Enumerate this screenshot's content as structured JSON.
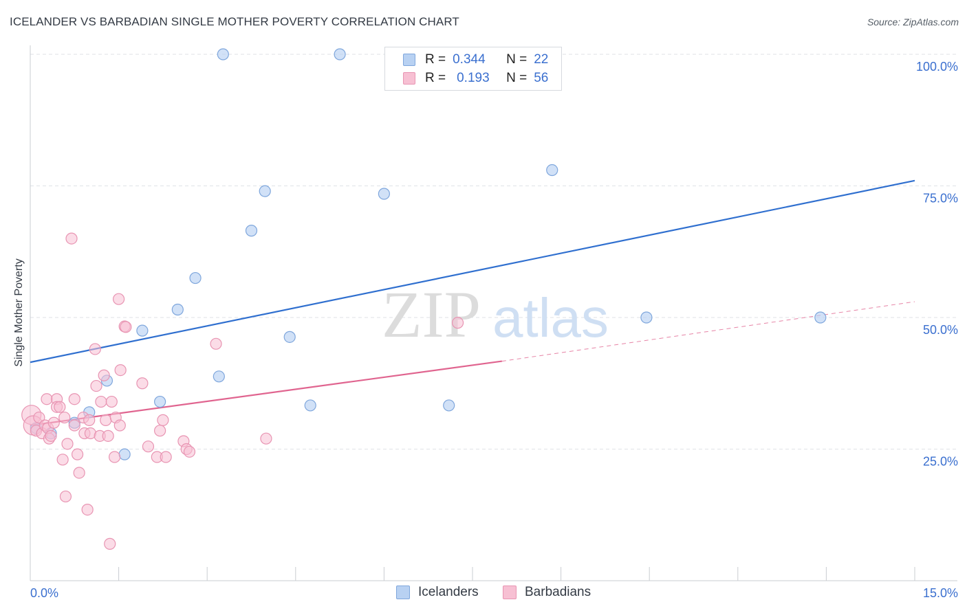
{
  "header": {
    "title": "ICELANDER VS BARBADIAN SINGLE MOTHER POVERTY CORRELATION CHART",
    "source": "Source: ZipAtlas.com"
  },
  "watermark": {
    "zip": "ZIP",
    "atlas": "atlas"
  },
  "legend": {
    "rows": [
      {
        "r_label": "R =",
        "r_value": "0.344",
        "n_label": "N =",
        "n_value": "22"
      },
      {
        "r_label": "R =",
        "r_value": "0.193",
        "n_label": "N =",
        "n_value": "56"
      }
    ]
  },
  "bottom_legend": {
    "items": [
      "Icelanders",
      "Barbadians"
    ]
  },
  "colors": {
    "blue_fill": "#b8d1f2",
    "blue_stroke": "#7ea6dc",
    "blue_line": "#2f6fcf",
    "pink_fill": "#f7c0d3",
    "pink_stroke": "#e894b2",
    "pink_line": "#e0648f",
    "tick_text": "#3a6fcf",
    "grid": "#dfe2e6"
  },
  "chart_data": {
    "type": "scatter",
    "title": "ICELANDER VS BARBADIAN SINGLE MOTHER POVERTY CORRELATION CHART",
    "xlabel": "",
    "ylabel": "Single Mother Poverty",
    "xlim": [
      0,
      15
    ],
    "ylim": [
      0,
      100
    ],
    "x_tick_labels": [
      "0.0%",
      "15.0%"
    ],
    "y_tick_labels": [
      "25.0%",
      "50.0%",
      "75.0%",
      "100.0%"
    ],
    "y_ticks": [
      25,
      50,
      75,
      100
    ],
    "grid": true,
    "legend_position": "top-center",
    "series": [
      {
        "name": "Icelanders",
        "color": "#7ea6dc",
        "points": [
          [
            0.1,
            29
          ],
          [
            0.35,
            28
          ],
          [
            0.75,
            30
          ],
          [
            1.0,
            32
          ],
          [
            1.3,
            38
          ],
          [
            1.6,
            24
          ],
          [
            1.9,
            47.5
          ],
          [
            2.2,
            34
          ],
          [
            2.5,
            51.5
          ],
          [
            2.8,
            57.5
          ],
          [
            3.2,
            38.8
          ],
          [
            3.27,
            100
          ],
          [
            3.75,
            66.5
          ],
          [
            3.98,
            74
          ],
          [
            4.4,
            46.3
          ],
          [
            4.75,
            33.3
          ],
          [
            5.25,
            100
          ],
          [
            6.0,
            73.5
          ],
          [
            7.1,
            33.3
          ],
          [
            8.85,
            78
          ],
          [
            10.45,
            50
          ],
          [
            13.4,
            50
          ]
        ],
        "trend": {
          "x": [
            0,
            15
          ],
          "y": [
            41.5,
            76
          ]
        }
      },
      {
        "name": "Barbadians",
        "color": "#e894b2",
        "points": [
          [
            0.02,
            31.5
          ],
          [
            0.05,
            29.5
          ],
          [
            0.1,
            28.5
          ],
          [
            0.15,
            31
          ],
          [
            0.2,
            28
          ],
          [
            0.25,
            29.5
          ],
          [
            0.28,
            34.5
          ],
          [
            0.3,
            29
          ],
          [
            0.32,
            27
          ],
          [
            0.35,
            27.5
          ],
          [
            0.4,
            30
          ],
          [
            0.45,
            34.5
          ],
          [
            0.45,
            33
          ],
          [
            0.5,
            33
          ],
          [
            0.55,
            23
          ],
          [
            0.58,
            31
          ],
          [
            0.6,
            16
          ],
          [
            0.63,
            26
          ],
          [
            0.7,
            65
          ],
          [
            0.75,
            29.5
          ],
          [
            0.75,
            34.5
          ],
          [
            0.8,
            24
          ],
          [
            0.83,
            20.5
          ],
          [
            0.9,
            31
          ],
          [
            0.92,
            28
          ],
          [
            0.97,
            13.5
          ],
          [
            1.0,
            30.5
          ],
          [
            1.02,
            28
          ],
          [
            1.1,
            44
          ],
          [
            1.12,
            37
          ],
          [
            1.18,
            27.5
          ],
          [
            1.2,
            34
          ],
          [
            1.25,
            39
          ],
          [
            1.28,
            30.5
          ],
          [
            1.32,
            27.5
          ],
          [
            1.35,
            7
          ],
          [
            1.38,
            34
          ],
          [
            1.43,
            23.5
          ],
          [
            1.45,
            31
          ],
          [
            1.5,
            53.5
          ],
          [
            1.52,
            29.5
          ],
          [
            1.53,
            40
          ],
          [
            1.6,
            48.3
          ],
          [
            1.62,
            48.2
          ],
          [
            1.9,
            37.5
          ],
          [
            2.0,
            25.5
          ],
          [
            2.15,
            23.5
          ],
          [
            2.2,
            28.5
          ],
          [
            2.25,
            30.5
          ],
          [
            2.3,
            23.5
          ],
          [
            2.6,
            26.5
          ],
          [
            2.65,
            25
          ],
          [
            2.7,
            24.5
          ],
          [
            3.15,
            45
          ],
          [
            4.0,
            27
          ],
          [
            7.25,
            49
          ]
        ],
        "trend": {
          "x": [
            0,
            8.0
          ],
          "y": [
            29.5,
            41.7
          ]
        },
        "trend_dashed": {
          "x": [
            8.0,
            15
          ],
          "y": [
            41.7,
            53
          ]
        }
      }
    ]
  }
}
